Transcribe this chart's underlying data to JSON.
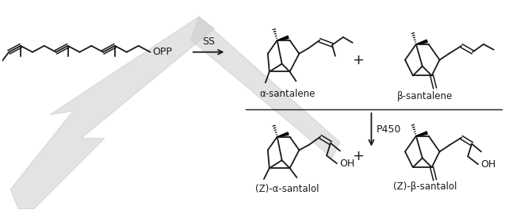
{
  "background_color": "#ffffff",
  "line_color": "#1a1a1a",
  "watermark_color": "#cccccc",
  "labels": {
    "opp": "OPP",
    "ss": "SS",
    "p450": "P450",
    "alpha_santalene": "α-santalene",
    "beta_santalene": "β-santalene",
    "z_alpha_santalol": "(Z)-α-santalol",
    "z_beta_santalol": "(Z)-β-santalol",
    "plus": "+",
    "oh": "OH"
  },
  "figsize": [
    6.37,
    2.65
  ],
  "dpi": 100
}
